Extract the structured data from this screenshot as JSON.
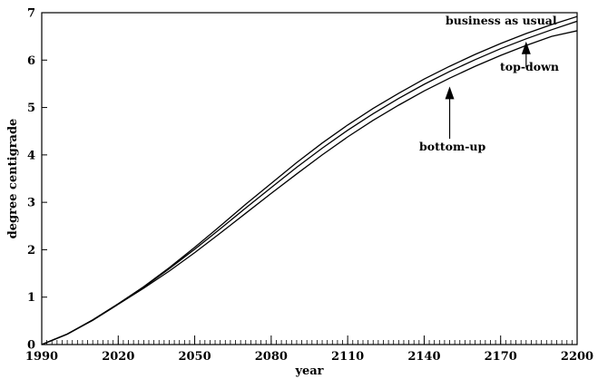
{
  "chart_data": {
    "type": "line",
    "title": "",
    "xlabel": "year",
    "ylabel": "degree centigrade",
    "xlim": [
      1990,
      2200
    ],
    "ylim": [
      0,
      7
    ],
    "x_ticks": [
      1990,
      2020,
      2050,
      2080,
      2110,
      2140,
      2170,
      2200
    ],
    "y_ticks": [
      0,
      1,
      2,
      3,
      4,
      5,
      6,
      7
    ],
    "grid": false,
    "legend": "none",
    "x": [
      1990,
      2000,
      2010,
      2020,
      2030,
      2040,
      2050,
      2060,
      2070,
      2080,
      2090,
      2100,
      2110,
      2120,
      2130,
      2140,
      2150,
      2160,
      2170,
      2180,
      2190,
      2200
    ],
    "series": [
      {
        "name": "business as usual",
        "values": [
          0.0,
          0.22,
          0.52,
          0.86,
          1.22,
          1.62,
          2.05,
          2.5,
          2.96,
          3.4,
          3.84,
          4.25,
          4.63,
          4.98,
          5.3,
          5.6,
          5.87,
          6.12,
          6.35,
          6.56,
          6.75,
          6.92
        ]
      },
      {
        "name": "top-down",
        "values": [
          0.0,
          0.22,
          0.52,
          0.86,
          1.21,
          1.6,
          2.01,
          2.44,
          2.88,
          3.31,
          3.74,
          4.14,
          4.52,
          4.87,
          5.19,
          5.49,
          5.76,
          6.01,
          6.24,
          6.45,
          6.64,
          6.82
        ]
      },
      {
        "name": "bottom-up",
        "values": [
          0.0,
          0.22,
          0.51,
          0.85,
          1.19,
          1.55,
          1.94,
          2.35,
          2.77,
          3.19,
          3.6,
          4.0,
          4.38,
          4.73,
          5.05,
          5.35,
          5.62,
          5.87,
          6.1,
          6.31,
          6.5,
          6.62
        ]
      }
    ],
    "annotations": [
      {
        "text": "business as usual",
        "arrow": false
      },
      {
        "text": "top-down",
        "arrow": true,
        "arrow_to": {
          "x": 2180,
          "y": 6.45
        }
      },
      {
        "text": "bottom-up",
        "arrow": true,
        "arrow_to": {
          "x": 2150,
          "y": 5.5
        }
      }
    ]
  }
}
